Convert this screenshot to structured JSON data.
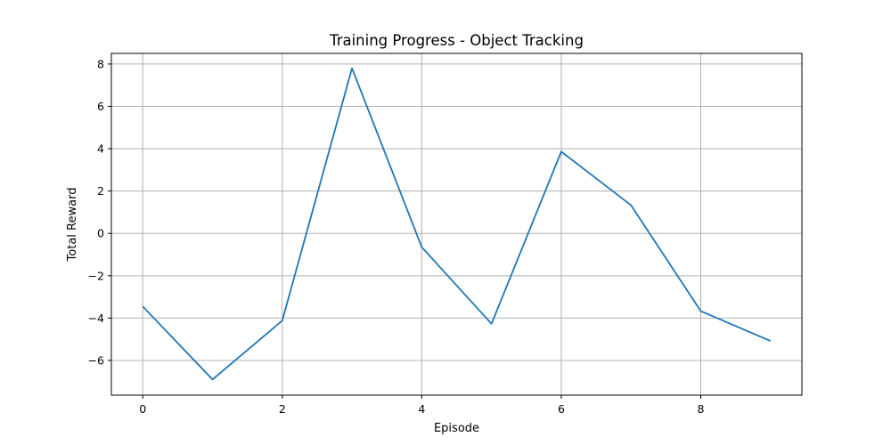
{
  "chart_data": {
    "type": "line",
    "title": "Training Progress - Object Tracking",
    "xlabel": "Episode",
    "ylabel": "Total Reward",
    "x": [
      0,
      1,
      2,
      3,
      4,
      5,
      6,
      7,
      8,
      9
    ],
    "series": [
      {
        "values": [
          -3.45,
          -6.9,
          -4.12,
          7.8,
          -0.65,
          -4.27,
          3.86,
          1.33,
          -3.67,
          -5.08
        ]
      }
    ],
    "xlim": [
      -0.45,
      9.45
    ],
    "ylim": [
      -7.64,
      8.5
    ],
    "xticks": [
      0,
      2,
      4,
      6,
      8
    ],
    "yticks": [
      -6,
      -4,
      -2,
      0,
      2,
      4,
      6,
      8
    ],
    "ytick_labels": [
      "−6",
      "−4",
      "−2",
      "0",
      "2",
      "4",
      "6",
      "8"
    ],
    "grid": true,
    "colors": {
      "line": "#1f77b4"
    }
  }
}
